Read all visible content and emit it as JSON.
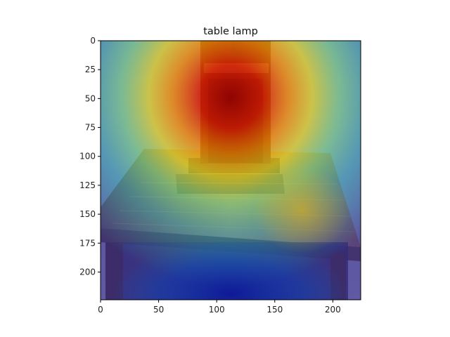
{
  "chart_data": {
    "type": "heatmap",
    "title": "table lamp",
    "xlabel": "",
    "ylabel": "",
    "xlim": [
      0,
      224
    ],
    "ylim": [
      224,
      0
    ],
    "x_ticks": [
      0,
      50,
      100,
      150,
      200
    ],
    "y_ticks": [
      0,
      25,
      50,
      75,
      100,
      125,
      150,
      175,
      200
    ],
    "x_tick_labels": [
      "0",
      "50",
      "100",
      "150",
      "200"
    ],
    "y_tick_labels": [
      "0",
      "25",
      "50",
      "75",
      "100",
      "125",
      "150",
      "175",
      "200"
    ],
    "grid": false,
    "colormap": "jet",
    "overlay": "attention heatmap over photo of a wooden table with a lamp",
    "hotspot": {
      "x": 112,
      "y": 60
    },
    "cold_region": {
      "x": 112,
      "y": 210
    },
    "colors": {
      "photo_wood": "#8a6a3a",
      "hot": "#c01a10",
      "warm": "#f0c020",
      "cool": "#40c0b0",
      "cold": "#1020a0"
    }
  }
}
